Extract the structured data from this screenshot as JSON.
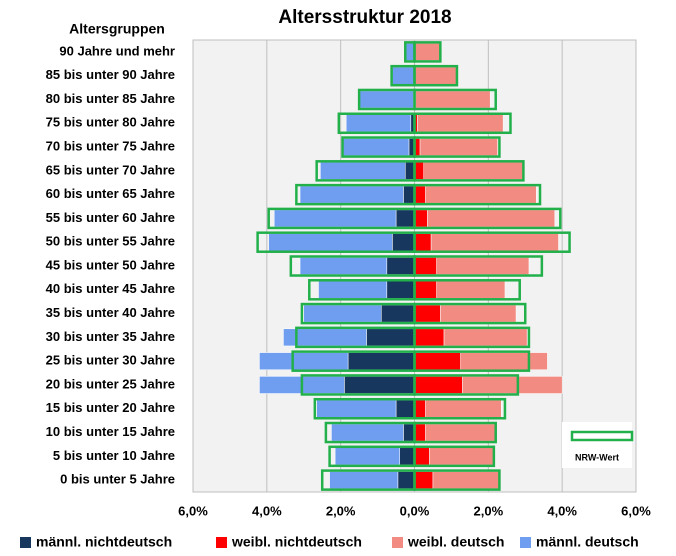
{
  "chart_data": {
    "type": "pyramid",
    "title": "Altersstruktur 2018",
    "category_axis_label": "Altersgruppen",
    "categories": [
      "90 Jahre und mehr",
      "85 bis unter 90 Jahre",
      "80 bis unter 85 Jahre",
      "75 bis unter 80 Jahre",
      "70 bis unter 75 Jahre",
      "65 bis unter 70 Jahre",
      "60 bis unter 65 Jahre",
      "55 bis unter 60 Jahre",
      "50 bis unter 55 Jahre",
      "45 bis unter 50 Jahre",
      "40 bis unter 45 Jahre",
      "35 bis unter 40 Jahre",
      "30 bis unter 35 Jahre",
      "25 bis unter 30 Jahre",
      "20 bis unter 25 Jahre",
      "15 bis unter 20 Jahre",
      "10 bis unter 15 Jahre",
      "5 bis unter 10 Jahre",
      "0 bis unter 5 Jahre"
    ],
    "series": [
      {
        "name": "männl. nichtdeutsch",
        "color": "#17375e",
        "values": [
          -0.02,
          -0.02,
          -0.03,
          -0.1,
          -0.15,
          -0.25,
          -0.3,
          -0.5,
          -0.6,
          -0.75,
          -0.75,
          -0.9,
          -1.3,
          -1.8,
          -1.9,
          -0.5,
          -0.3,
          -0.4,
          -0.45
        ]
      },
      {
        "name": "weibl. nichtdeutsch",
        "color": "#ff0000",
        "values": [
          0.02,
          0.02,
          0.03,
          0.08,
          0.15,
          0.25,
          0.3,
          0.35,
          0.45,
          0.6,
          0.6,
          0.7,
          0.8,
          1.25,
          1.3,
          0.3,
          0.3,
          0.4,
          0.5
        ]
      },
      {
        "name": "weibl. deutsch",
        "color": "#f28b82",
        "values": [
          0.68,
          1.13,
          2.02,
          2.32,
          2.1,
          2.7,
          3.0,
          3.45,
          3.45,
          2.5,
          1.85,
          2.05,
          2.25,
          2.35,
          2.7,
          2.05,
          1.9,
          1.75,
          1.8
        ]
      },
      {
        "name": "männl. deutsch",
        "color": "#6f9ef0",
        "values": [
          -0.22,
          -0.58,
          -1.47,
          -1.75,
          -1.8,
          -2.3,
          -2.8,
          -3.3,
          -3.35,
          -2.35,
          -1.85,
          -2.1,
          -2.25,
          -2.4,
          -2.3,
          -2.15,
          -1.95,
          -1.75,
          -1.85
        ]
      }
    ],
    "reference": {
      "name": "NRW-Wert",
      "color": "#22b04b",
      "male": [
        -0.25,
        -0.62,
        -1.5,
        -2.05,
        -1.95,
        -2.65,
        -3.2,
        -3.95,
        -4.25,
        -3.35,
        -2.85,
        -3.05,
        -3.2,
        -3.3,
        -3.05,
        -2.7,
        -2.4,
        -2.3,
        -2.5
      ],
      "female": [
        0.7,
        1.15,
        2.2,
        2.6,
        2.3,
        2.95,
        3.4,
        3.95,
        4.2,
        3.45,
        2.85,
        3.0,
        3.1,
        3.1,
        2.8,
        2.45,
        2.2,
        2.15,
        2.3
      ]
    },
    "xlim": [
      -6,
      6
    ],
    "xticks": [
      {
        "value": -6,
        "label": "6,0%"
      },
      {
        "value": -4,
        "label": "4,0%"
      },
      {
        "value": -2,
        "label": "2,0%"
      },
      {
        "value": 0,
        "label": "0,0%"
      },
      {
        "value": 2,
        "label": "2,0%"
      },
      {
        "value": 4,
        "label": "4,0%"
      },
      {
        "value": 6,
        "label": "6,0%"
      }
    ],
    "grid": true
  }
}
